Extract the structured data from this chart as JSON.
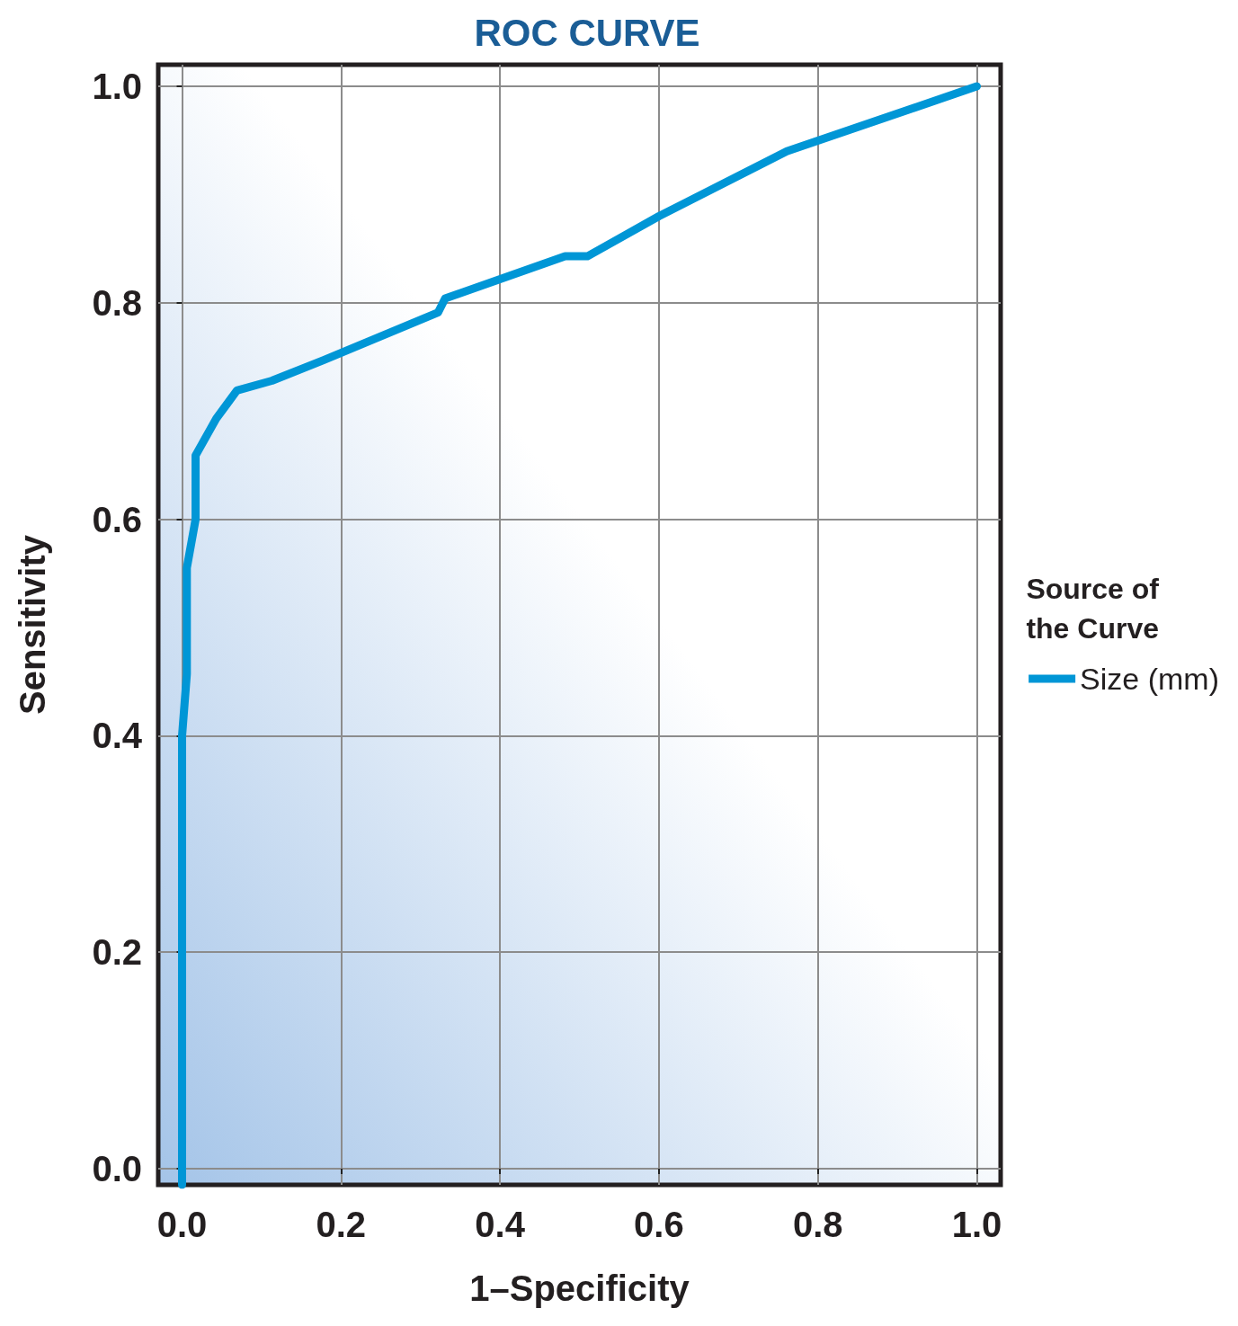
{
  "chart_data": {
    "type": "line",
    "title": "ROC CURVE",
    "xlabel": "1–Specificity",
    "ylabel": "Sensitivity",
    "legend_title": "Source of the Curve",
    "legend": "right",
    "x": [
      0.0,
      0.0,
      0.006,
      0.006,
      0.017,
      0.017,
      0.043,
      0.069,
      0.113,
      0.178,
      0.322,
      0.331,
      0.482,
      0.51,
      0.6,
      0.761,
      1.0
    ],
    "series": [
      {
        "name": "Size (mm)",
        "color": "#0096d6",
        "values": [
          -0.015,
          0.4,
          0.457,
          0.555,
          0.6,
          0.659,
          0.693,
          0.719,
          0.728,
          0.747,
          0.791,
          0.804,
          0.843,
          0.843,
          0.88,
          0.94,
          1.0
        ]
      }
    ],
    "xlim": [
      -0.03,
      1.03
    ],
    "ylim": [
      -0.015,
      1.02
    ],
    "xticks": [
      {
        "value": 0,
        "label": "0.0"
      },
      0.2,
      0.4,
      0.6,
      0.8,
      {
        "value": 1,
        "label": "1.0"
      }
    ],
    "yticks": [
      {
        "value": 0,
        "label": "0.0"
      },
      0.2,
      0.4,
      0.6,
      0.8,
      {
        "value": 1,
        "label": "1.0"
      }
    ],
    "grid": true,
    "marker": "none",
    "line_style": "solid"
  }
}
